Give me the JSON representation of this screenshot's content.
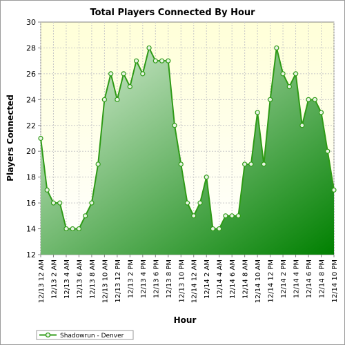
{
  "chart_data": {
    "type": "area",
    "title": "Total Players Connected By Hour",
    "xlabel": "Hour",
    "ylabel": "Players Connected",
    "ylim": [
      12,
      30
    ],
    "yticks": [
      12,
      14,
      16,
      18,
      20,
      22,
      24,
      26,
      28,
      30
    ],
    "grid": true,
    "legend_position": "bottom-left",
    "colors": {
      "line": "#2e9a16",
      "fill_top": "#dff0dc",
      "fill_bottom": "#008000",
      "plot_bg_top": "#ffffd8",
      "plot_bg_bottom": "#ffffff",
      "marker_fill": "#e8f5e4"
    },
    "x_tick_labels": [
      "12/13 12 AM",
      "12/13 2 AM",
      "12/13 4 AM",
      "12/13 6 AM",
      "12/13 8 AM",
      "12/13 10 AM",
      "12/13 12 PM",
      "12/13 2 PM",
      "12/13 4 PM",
      "12/13 6 PM",
      "12/13 8 PM",
      "12/13 10 PM",
      "12/14 12 AM",
      "12/14 2 AM",
      "12/14 4 AM",
      "12/14 6 AM",
      "12/14 8 AM",
      "12/14 10 AM",
      "12/14 12 PM",
      "12/14 2 PM",
      "12/14 4 PM",
      "12/14 6 PM",
      "12/14 8 PM",
      "12/14 10 PM"
    ],
    "series": [
      {
        "name": "Shadowrun - Denver",
        "values": [
          21,
          17,
          16,
          16,
          14,
          14,
          14,
          15,
          16,
          19,
          24,
          26,
          24,
          26,
          25,
          27,
          26,
          28,
          27,
          27,
          27,
          22,
          19,
          16,
          15,
          16,
          18,
          14,
          14,
          15,
          15,
          15,
          19,
          19,
          23,
          19,
          24,
          28,
          26,
          25,
          26,
          22,
          24,
          24,
          23,
          20,
          17
        ]
      }
    ]
  }
}
